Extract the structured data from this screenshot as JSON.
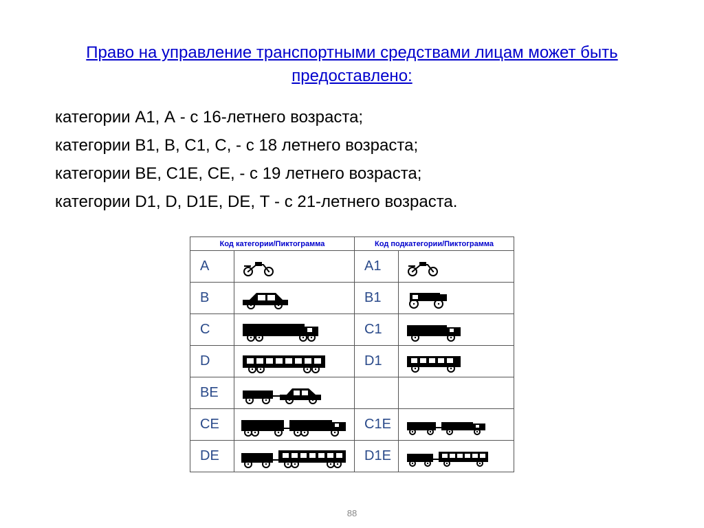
{
  "title": "Право на управление транспортными средствами лицам может быть предоставлено:",
  "intro": [
    "категории А1, А - с 16-летнего возраста;",
    "категории В1, В, С1, С,  - с 18 летнего возраста;",
    "категории ВЕ, С1Е, СЕ, - с 19 летнего возраста;",
    "категории D1, D, D1Е, DЕ, Т - с 21-летнего возраста."
  ],
  "table": {
    "header_left": "Код категории/Пиктограмма",
    "header_right": "Код подкатегории/Пиктограмма",
    "rows": [
      {
        "code_left": "A",
        "icon_left": "motorcycle",
        "code_right": "A1",
        "icon_right": "motorcycle"
      },
      {
        "code_left": "B",
        "icon_left": "car",
        "code_right": "B1",
        "icon_right": "quad"
      },
      {
        "code_left": "C",
        "icon_left": "truck",
        "code_right": "C1",
        "icon_right": "small-truck"
      },
      {
        "code_left": "D",
        "icon_left": "bus",
        "code_right": "D1",
        "icon_right": "small-bus"
      },
      {
        "code_left": "BE",
        "icon_left": "car-trailer",
        "code_right": "",
        "icon_right": ""
      },
      {
        "code_left": "CE",
        "icon_left": "truck-trailer",
        "code_right": "C1E",
        "icon_right": "small-truck-trailer"
      },
      {
        "code_left": "DE",
        "icon_left": "bus-trailer",
        "code_right": "D1E",
        "icon_right": "small-bus-trailer"
      }
    ]
  },
  "page_number": "88",
  "colors": {
    "title": "#0000cc",
    "header": "#0000cc",
    "code": "#2a4a8a",
    "text": "#000000",
    "border": "#555555",
    "background": "#ffffff",
    "pagenum": "#888888"
  },
  "typography": {
    "title_fontsize": 24,
    "body_fontsize": 24,
    "code_fontsize": 20,
    "header_fontsize": 11
  }
}
